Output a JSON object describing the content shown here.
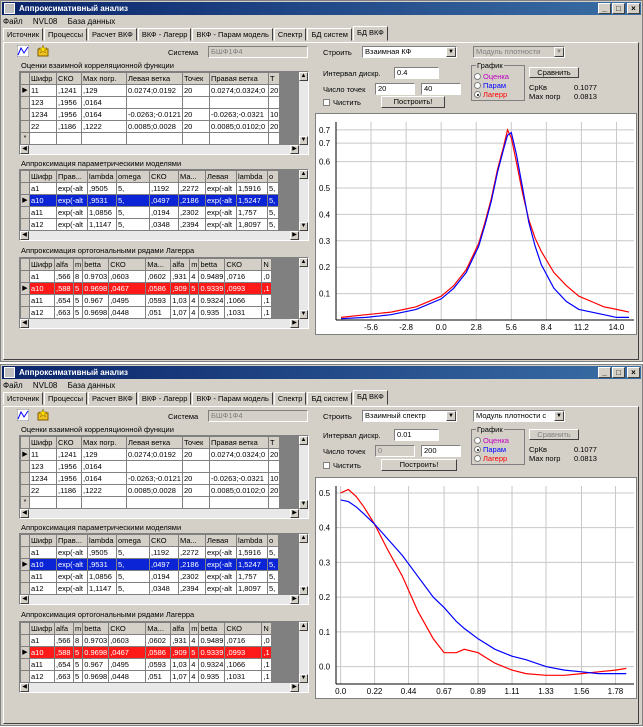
{
  "window_title": "Аппроксимативный анализ",
  "window_buttons": [
    "_",
    "□",
    "×"
  ],
  "menu": [
    "Файл",
    "NVL08",
    "База данных"
  ],
  "tabs": [
    "Источник",
    "Процессы",
    "Расчет ВКФ",
    "ВКФ - Лагерр",
    "ВКФ - Парам модель",
    "Спектр",
    "БД систем",
    "БД ВКФ"
  ],
  "active_tab": "БД ВКФ",
  "system_label": "Система",
  "system_value": "БШФ1Ф4",
  "icons": [
    "chart-line-icon",
    "folder-star-icon"
  ],
  "corr": {
    "title": "Оценки взаимной корреляционной функции",
    "headers": [
      "Шифр",
      "СКО",
      "Мах погр.",
      "Левая ветка",
      "Точек",
      "Правая ветка",
      "Т"
    ],
    "rows": [
      [
        "11",
        ",1241",
        ",129",
        "0.0274;0.0192",
        "20",
        "0.0274;0.0324;0",
        "20"
      ],
      [
        "123",
        ",1956",
        ",0164",
        "",
        "",
        "",
        ""
      ],
      [
        "1234",
        ",1956",
        ",0164",
        "-0.0263;-0.0121",
        "20",
        "-0.0263;-0.0321",
        "10"
      ],
      [
        "22",
        ",1186",
        ",1222",
        "0.0085;0.0028",
        "20",
        "0.0085;0.0102;0",
        "20"
      ]
    ],
    "markers": [
      "▶",
      "",
      "",
      "",
      "*"
    ]
  },
  "param": {
    "title": "Аппроксимация параметрическими моделями",
    "headers": [
      "Шифр",
      "Прав...",
      "lambda",
      "omega",
      "СКО",
      "Ма...",
      "Левая",
      "lambda",
      "o"
    ],
    "rows": [
      [
        "a1",
        "exp(-alt",
        ",9505",
        "5,",
        ",1192",
        ",2272",
        "exp(-alt",
        "1,5916",
        "5,"
      ],
      [
        "a10",
        "exp(-alt",
        ",9531",
        "5,",
        ",0497",
        ",2186",
        "exp(-alt",
        "1,5247",
        "5,"
      ],
      [
        "a11",
        "exp(-alt",
        "1,0856",
        "5,",
        ",0194",
        ",2302",
        "exp(-alt",
        "1,757",
        "5,"
      ],
      [
        "a12",
        "exp(-alt",
        "1,1147",
        "5,",
        ",0348",
        ",2394",
        "exp(-alt",
        "1,8097",
        "5,"
      ]
    ],
    "markers": [
      "",
      "▶",
      "",
      ""
    ]
  },
  "lag": {
    "title": "Аппроксимация ортогональными рядами Лагерра",
    "headers": [
      "Шифр",
      "alfa",
      "m",
      "betta",
      "СКО",
      "Ма...",
      "alfa",
      "m",
      "betta",
      "СКО",
      "N"
    ],
    "rows": [
      [
        "a1",
        ",566",
        "8",
        "0.9703",
        ",0603",
        ",0602",
        ",931",
        "4",
        "0.9489",
        ",0716",
        ",0"
      ],
      [
        "a10",
        ",588",
        "5",
        "0.9698",
        ",0467",
        ",0586",
        ",909",
        "5",
        "0.9339",
        ",0993",
        ",1"
      ],
      [
        "a11",
        ",654",
        "5",
        "0.967",
        ",0495",
        ",0593",
        "1,03",
        "4",
        "0.9324",
        ",1066",
        ",1"
      ],
      [
        "a12",
        ",663",
        "5",
        "0.9698",
        ",0448",
        ",051",
        "1,07",
        "4",
        "0.935",
        ",1031",
        ",1"
      ]
    ],
    "markers": [
      "",
      "▶",
      "",
      ""
    ]
  },
  "controls": {
    "build_label": "Строить",
    "interval_label": "Интервал дискр.",
    "points_label": "Число точек",
    "clear_label": "Чистить",
    "build_button": "Построить!",
    "compare_button": "Сравнить",
    "group_title": "График",
    "radio_labels": [
      "Оценка",
      "Парам",
      "Лагерр"
    ],
    "radio_colors": [
      "#c000c0",
      "#0000ff",
      "#ff0000"
    ],
    "srkv_label": "СрКв",
    "maxpogr_label": "Мах погр"
  },
  "panels": [
    {
      "build_mode": "Взаимная КФ",
      "density_mode": "Модуль плотности",
      "interval_value": "0.4",
      "points_from": "20",
      "points_to": "40",
      "srkv_value": "0.1077",
      "maxpogr_value": "0.0813",
      "selected_radio": 2
    },
    {
      "build_mode": "Взаимный спектр",
      "density_mode": "Модуль плотности с",
      "interval_value": "0.01",
      "points_from": "0",
      "points_to": "200",
      "srkv_value": "0.1077",
      "maxpogr_value": "0.0813",
      "selected_radio": 1
    }
  ],
  "chart_data": [
    {
      "type": "line",
      "title": "",
      "xlabel": "",
      "ylabel": "",
      "xlim": [
        -8.4,
        15.4
      ],
      "ylim": [
        0,
        0.75
      ],
      "x_ticks": [
        "-5.6",
        "-2.8",
        "0.0",
        "2.8",
        "5.6",
        "8.4",
        "11.2",
        "14.0"
      ],
      "x_tick_values": [
        -5.6,
        -2.8,
        0.0,
        2.8,
        5.6,
        8.4,
        11.2,
        14.0
      ],
      "y_ticks": [
        "0.1",
        "0.2",
        "0.3",
        "0.4",
        "0.5",
        "0.6",
        "0.7",
        "0.7"
      ],
      "y_tick_values": [
        0.1,
        0.2,
        0.3,
        0.4,
        0.5,
        0.6,
        0.67,
        0.72
      ],
      "grid": true,
      "series": [
        {
          "color": "#ff0000",
          "x": [
            -8.0,
            -6.0,
            -4.0,
            -2.0,
            0.0,
            1.0,
            2.0,
            3.0,
            3.5,
            4.0,
            4.5,
            5.0,
            5.3,
            5.6,
            6.0,
            6.5,
            7.0,
            7.5,
            8.0,
            9.0,
            10.0,
            11.0,
            12.0,
            13.0,
            14.0,
            15.0
          ],
          "y": [
            0.01,
            0.02,
            0.03,
            0.05,
            0.09,
            0.13,
            0.19,
            0.29,
            0.37,
            0.46,
            0.57,
            0.66,
            0.72,
            0.69,
            0.6,
            0.48,
            0.38,
            0.31,
            0.26,
            0.18,
            0.13,
            0.09,
            0.07,
            0.05,
            0.04,
            0.03
          ]
        },
        {
          "color": "#0000ff",
          "x": [
            -8.0,
            -6.0,
            -4.0,
            -2.0,
            0.0,
            1.0,
            2.0,
            3.0,
            3.5,
            4.0,
            4.5,
            5.0,
            5.3,
            5.6,
            6.0,
            6.5,
            7.0,
            7.5,
            8.0,
            9.0,
            10.0,
            11.0,
            12.0,
            13.0,
            14.0,
            15.0
          ],
          "y": [
            0.005,
            0.01,
            0.02,
            0.04,
            0.08,
            0.12,
            0.18,
            0.28,
            0.36,
            0.45,
            0.56,
            0.65,
            0.7,
            0.71,
            0.63,
            0.5,
            0.37,
            0.28,
            0.21,
            0.12,
            0.07,
            0.04,
            0.03,
            0.02,
            0.01,
            0.01
          ]
        }
      ]
    },
    {
      "type": "line",
      "title": "",
      "xlabel": "",
      "ylabel": "",
      "xlim": [
        -0.03,
        1.9
      ],
      "ylim": [
        -0.05,
        0.52
      ],
      "x_ticks": [
        "0.0",
        "0.22",
        "0.44",
        "0.67",
        "0.89",
        "1.11",
        "1.33",
        "1.56",
        "1.78"
      ],
      "x_tick_values": [
        0.0,
        0.22,
        0.44,
        0.67,
        0.89,
        1.11,
        1.33,
        1.56,
        1.78
      ],
      "y_ticks": [
        "0.5",
        "0.4",
        "0.3",
        "0.2",
        "0.1",
        "0.0"
      ],
      "y_tick_values": [
        0.5,
        0.4,
        0.3,
        0.2,
        0.1,
        0.0
      ],
      "grid": true,
      "series": [
        {
          "color": "#ff0000",
          "x": [
            0.0,
            0.05,
            0.1,
            0.15,
            0.22,
            0.3,
            0.4,
            0.5,
            0.6,
            0.67,
            0.75,
            0.8,
            0.89,
            1.0,
            1.11,
            1.2,
            1.33,
            1.45,
            1.56,
            1.67,
            1.78,
            1.85
          ],
          "y": [
            0.5,
            0.51,
            0.49,
            0.46,
            0.41,
            0.34,
            0.26,
            0.16,
            0.08,
            0.04,
            0.04,
            0.05,
            0.04,
            0.01,
            -0.01,
            -0.02,
            -0.025,
            -0.025,
            -0.02,
            -0.015,
            -0.01,
            -0.005
          ]
        },
        {
          "color": "#0000ff",
          "x": [
            0.0,
            0.05,
            0.1,
            0.15,
            0.22,
            0.3,
            0.4,
            0.5,
            0.6,
            0.67,
            0.75,
            0.8,
            0.89,
            1.0,
            1.11,
            1.2,
            1.33,
            1.45,
            1.56,
            1.67,
            1.78,
            1.85
          ],
          "y": [
            0.48,
            0.475,
            0.46,
            0.44,
            0.41,
            0.37,
            0.32,
            0.26,
            0.2,
            0.17,
            0.13,
            0.11,
            0.08,
            0.05,
            0.03,
            0.02,
            0.0,
            -0.01,
            -0.015,
            -0.02,
            -0.02,
            -0.02
          ]
        }
      ]
    }
  ]
}
